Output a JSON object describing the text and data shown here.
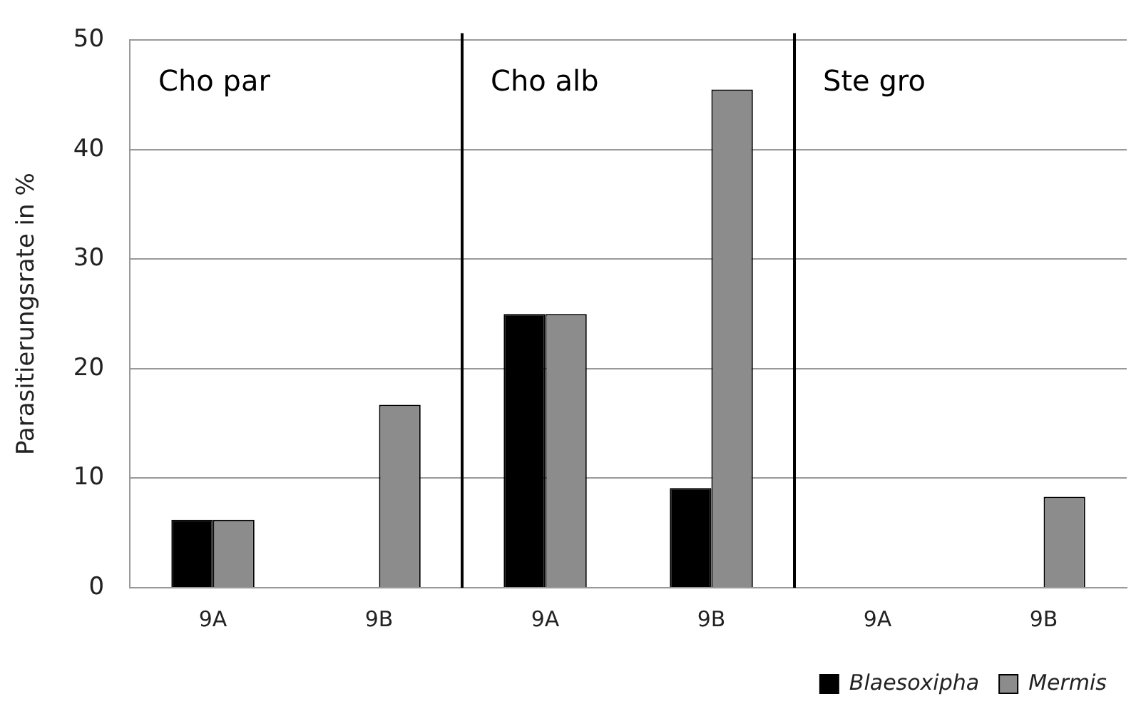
{
  "chart_data": {
    "type": "bar",
    "ylabel": "Parasitierungsrate in %",
    "categories": [
      "9A",
      "9B",
      "9A",
      "9B",
      "9A",
      "9B"
    ],
    "series": [
      {
        "name": "Blaesoxipha",
        "color": "#000000",
        "values": [
          6.2,
          0,
          25,
          9.1,
          0,
          0
        ]
      },
      {
        "name": "Mermis",
        "color": "#8c8c8c",
        "values": [
          6.2,
          16.7,
          25,
          45.5,
          0,
          8.3
        ]
      }
    ],
    "annotations": [
      "Cho par",
      "Cho alb",
      "Ste gro"
    ],
    "ylim": [
      0,
      50
    ],
    "yticks": [
      0,
      10,
      20,
      30,
      40,
      50
    ],
    "grid": "y",
    "legend": "bottom right"
  }
}
